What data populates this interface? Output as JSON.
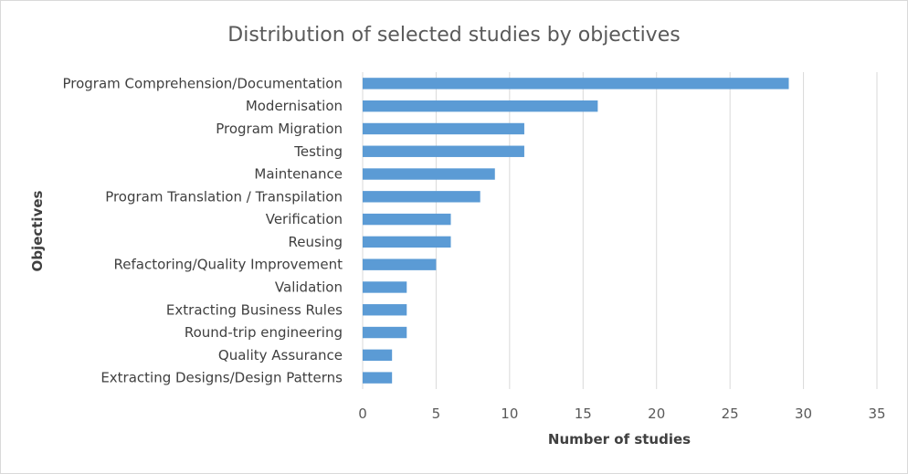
{
  "chart_data": {
    "type": "bar",
    "orientation": "horizontal",
    "title": "Distribution of selected studies by objectives",
    "xlabel": "Number of studies",
    "ylabel": "Objectives",
    "xlim": [
      0,
      35
    ],
    "xticks": [
      0,
      5,
      10,
      15,
      20,
      25,
      30,
      35
    ],
    "grid": true,
    "bar_color": "#5b9bd5",
    "categories": [
      "Program Comprehension/Documentation",
      "Modernisation",
      "Program Migration",
      "Testing",
      "Maintenance",
      "Program Translation / Transpilation",
      "Verification",
      "Reusing",
      "Refactoring/Quality Improvement",
      "Validation",
      "Extracting Business Rules",
      "Round-trip engineering",
      "Quality Assurance",
      "Extracting Designs/Design Patterns"
    ],
    "values": [
      29,
      16,
      11,
      11,
      9,
      8,
      6,
      6,
      5,
      3,
      3,
      3,
      2,
      2
    ]
  }
}
